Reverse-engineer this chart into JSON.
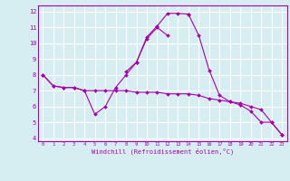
{
  "xlabel": "Windchill (Refroidissement éolien,°C)",
  "bg_color": "#d6eef2",
  "line_color": "#aa00aa",
  "grid_color": "#ffffff",
  "xlim": [
    -0.5,
    23.5
  ],
  "ylim": [
    3.8,
    12.4
  ],
  "xticks": [
    0,
    1,
    2,
    3,
    4,
    5,
    6,
    7,
    8,
    9,
    10,
    11,
    12,
    13,
    14,
    15,
    16,
    17,
    18,
    19,
    20,
    21,
    22,
    23
  ],
  "yticks": [
    4,
    5,
    6,
    7,
    8,
    9,
    10,
    11,
    12
  ],
  "series": [
    [
      8.0,
      7.3,
      7.2,
      7.2,
      7.0,
      7.0,
      7.0,
      7.0,
      7.0,
      6.9,
      6.9,
      6.9,
      6.8,
      6.8,
      6.8,
      6.7,
      6.5,
      6.4,
      6.3,
      6.2,
      6.0,
      5.8,
      5.0,
      4.2
    ],
    [
      8.0,
      7.3,
      7.2,
      7.2,
      7.0,
      5.5,
      6.0,
      7.2,
      8.0,
      8.8,
      10.3,
      11.0,
      10.5,
      null,
      null,
      null,
      null,
      null,
      null,
      null,
      null,
      null,
      null,
      null
    ],
    [
      null,
      null,
      null,
      null,
      null,
      null,
      null,
      null,
      8.2,
      8.8,
      10.4,
      11.1,
      11.9,
      11.9,
      11.85,
      null,
      null,
      null,
      null,
      null,
      null,
      null,
      null,
      null
    ],
    [
      null,
      null,
      null,
      null,
      null,
      null,
      null,
      null,
      null,
      null,
      null,
      null,
      null,
      null,
      11.85,
      10.5,
      8.3,
      6.7,
      6.3,
      6.1,
      5.7,
      5.0,
      5.0,
      4.2
    ]
  ]
}
